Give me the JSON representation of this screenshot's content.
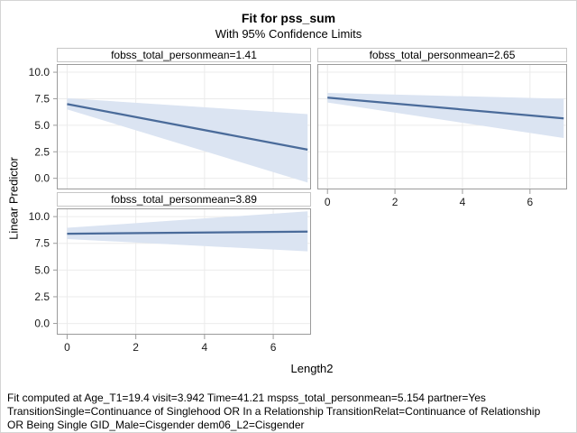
{
  "chart_data": {
    "type": "area",
    "title": "Fit for pss_sum",
    "subtitle": "With 95% Confidence Limits",
    "xlabel": "Length2",
    "ylabel": "Linear Predictor",
    "xlim": [
      -0.3,
      7.1
    ],
    "ylim": [
      -1.05,
      10.77
    ],
    "grid": true,
    "legend": "none",
    "xtick_values": [
      0,
      2,
      4,
      6
    ],
    "xtick_labels": [
      "0",
      "2",
      "4",
      "6"
    ],
    "ytick_values": [
      0,
      2.5,
      5,
      7.5,
      10
    ],
    "ytick_labels": [
      "0.0",
      "2.5",
      "5.0",
      "7.5",
      "10.0"
    ],
    "panels": [
      {
        "header": "fobss_total_personmean=1.41",
        "x": [
          0,
          7
        ],
        "fit": [
          7.0,
          2.7
        ],
        "upper": [
          7.55,
          6.05
        ],
        "lower": [
          6.5,
          -0.4
        ],
        "show_y_axis": true,
        "show_x_axis": false
      },
      {
        "header": "fobss_total_personmean=2.65",
        "x": [
          0,
          7
        ],
        "fit": [
          7.6,
          5.65
        ],
        "upper": [
          8.05,
          7.5
        ],
        "lower": [
          7.15,
          3.8
        ],
        "show_y_axis": false,
        "show_x_axis": true
      },
      {
        "header": "fobss_total_personmean=3.89",
        "x": [
          0,
          7
        ],
        "fit": [
          8.4,
          8.6
        ],
        "upper": [
          8.95,
          10.5
        ],
        "lower": [
          7.9,
          6.75
        ],
        "show_y_axis": true,
        "show_x_axis": true
      }
    ],
    "footnote_lines": [
      "Fit computed at Age_T1=19.4 visit=3.942 Time=41.21 mspss_total_personmean=5.154 partner=Yes",
      "TransitionSingle=Continuance of Singlehood OR In a Relationship TransitionRelat=Continuance of Relationship",
      "OR Being Single GID_Male=Cisgender dem06_L2=Cisgender"
    ]
  },
  "colors": {
    "fit_line": "#4a6b9a",
    "confidence_band": "#dbe4f2",
    "grid_line": "#ebebeb",
    "wall_border": "#9b9b9b",
    "tick_mark": "#9b9b9b",
    "tick_label": "#1a1a1a",
    "header_border": "#c6c6c6"
  }
}
